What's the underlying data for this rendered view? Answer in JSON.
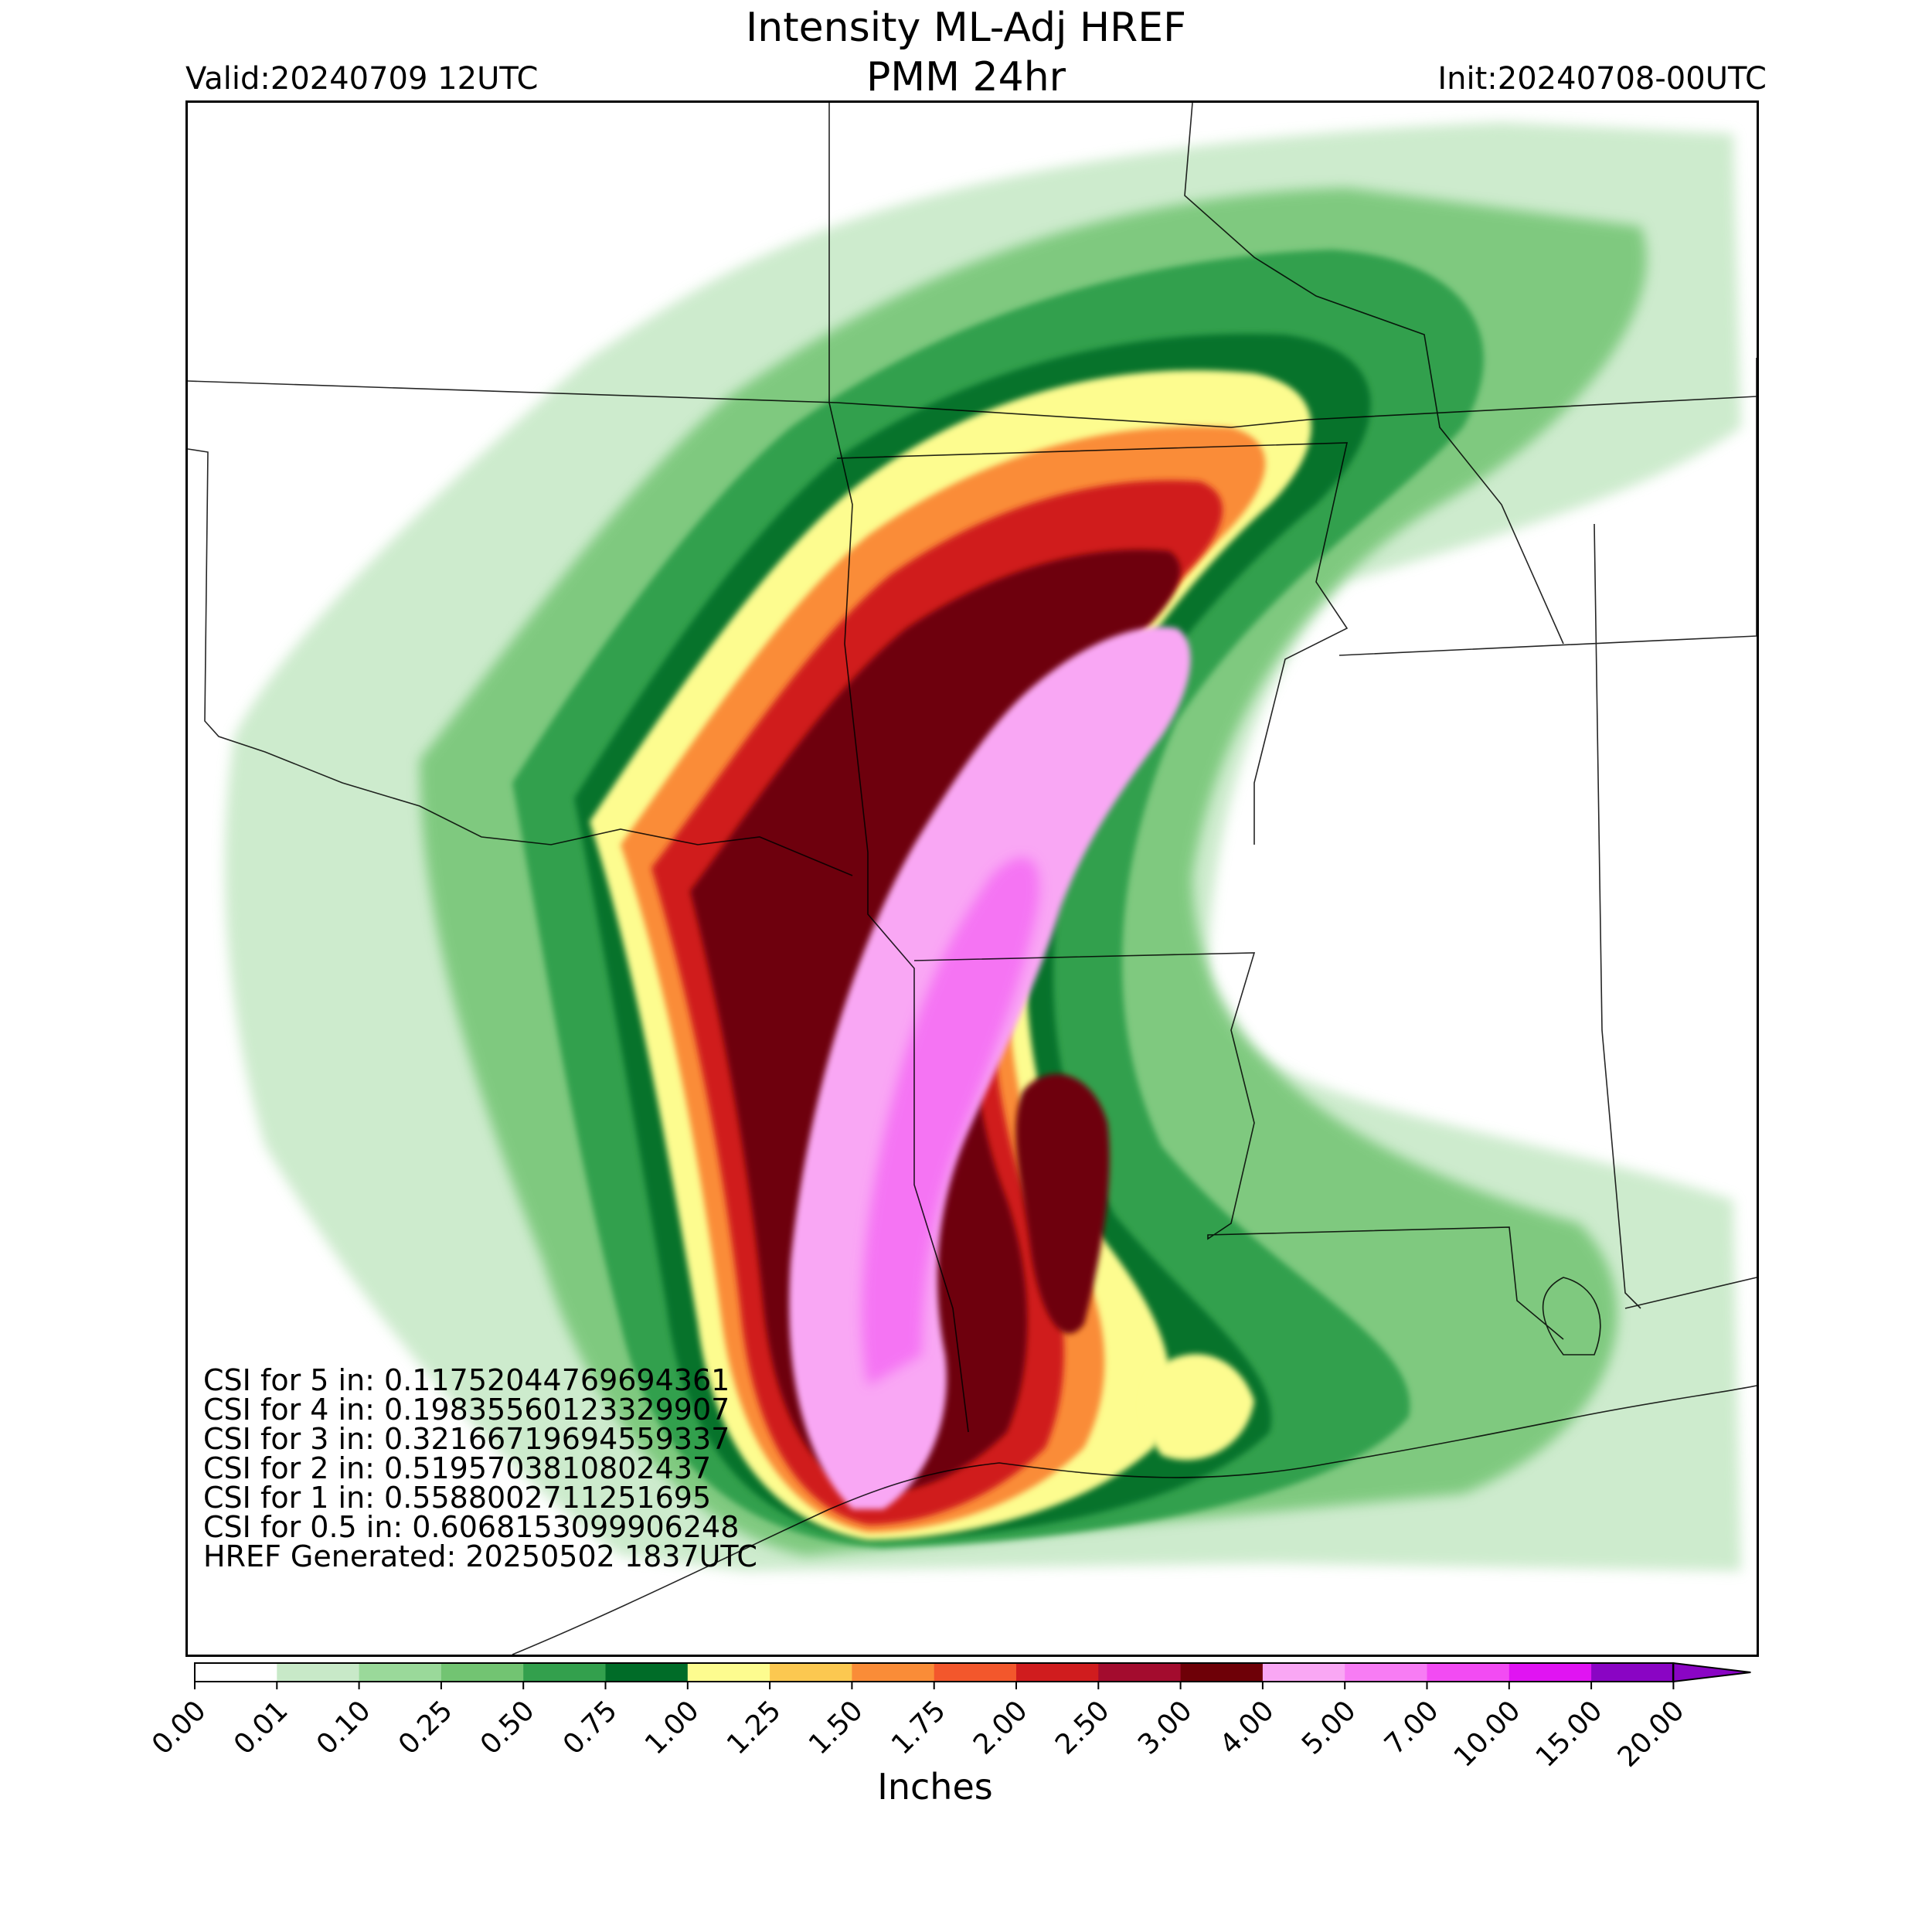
{
  "title": {
    "line1": "Intensity ML-Adj HREF",
    "line2": "PMM 24hr"
  },
  "valid": "Valid:20240709 12UTC",
  "init": "Init:20240708-00UTC",
  "stats": {
    "csi": [
      "CSI for 5 in: 0.11752044769694361",
      "CSI for 4 in: 0.19835560123329907",
      "CSI for 3 in: 0.32166719694559337",
      "CSI for 2 in: 0.5195703810802437",
      "CSI for 1 in: 0.5588002711251695",
      "CSI for 0.5 in: 0.6068153099906248"
    ],
    "generated": "HREF Generated: 20250502 1837UTC"
  },
  "colorbar": {
    "label": "Inches",
    "ticks": [
      "0.00",
      "0.01",
      "0.10",
      "0.25",
      "0.50",
      "0.75",
      "1.00",
      "1.25",
      "1.50",
      "1.75",
      "2.00",
      "2.50",
      "3.00",
      "4.00",
      "5.00",
      "7.00",
      "10.00",
      "15.00",
      "20.00"
    ],
    "colors": [
      "#ffffff",
      "#c8e9c8",
      "#9ad99a",
      "#72c472",
      "#33a04d",
      "#006c28",
      "#fdfc8f",
      "#fcc850",
      "#fa8c37",
      "#f3572c",
      "#d01c1e",
      "#a30c2e",
      "#6e0007",
      "#f9a7f4",
      "#f77cf4",
      "#f24bf3",
      "#e014f2",
      "#8a05c4"
    ]
  },
  "map": {
    "precip_colors": {
      "light_green": "#c8e9c8",
      "mid_green": "#72c472",
      "green": "#33a04d",
      "dark_green": "#006c28",
      "yellow": "#fdfc8f",
      "orange": "#fa8c37",
      "red": "#d01c1e",
      "dark_red": "#6e0007",
      "pink": "#f9a7f4",
      "magenta": "#f24bf3"
    }
  }
}
